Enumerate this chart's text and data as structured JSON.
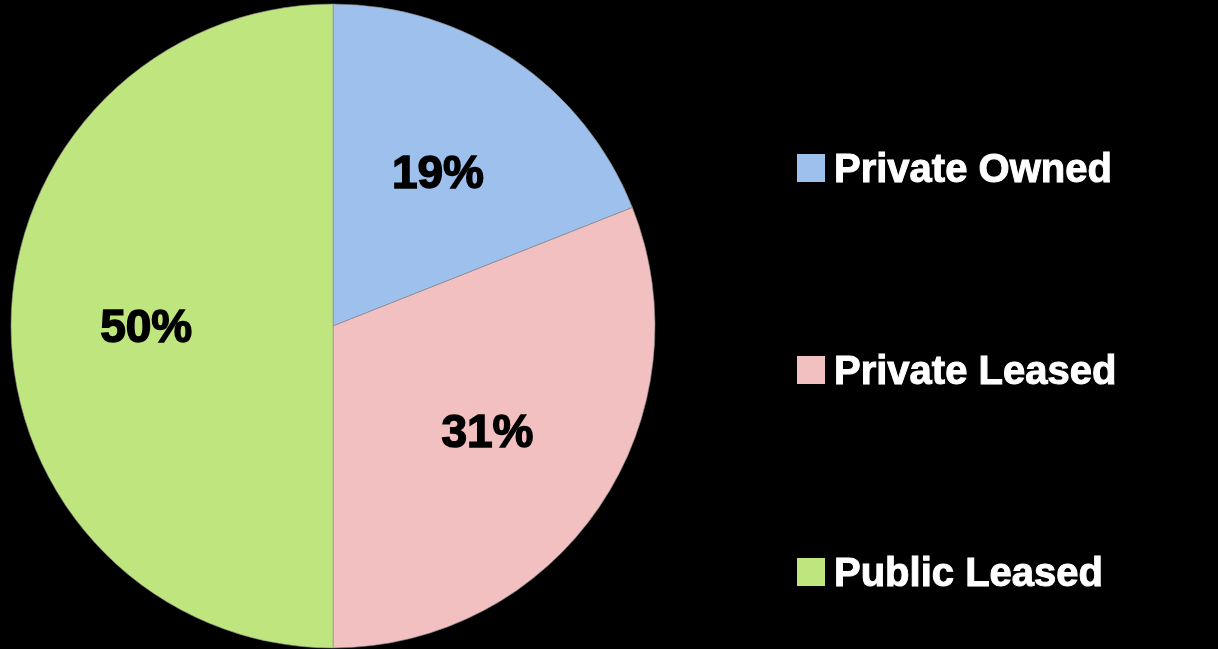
{
  "chart_data": {
    "type": "pie",
    "categories": [
      "Private Owned",
      "Private Leased",
      "Public Leased"
    ],
    "values": [
      19,
      31,
      50
    ],
    "colors": [
      "#9dc0ec",
      "#f2c0c0",
      "#bfe67e"
    ],
    "value_labels": [
      "19%",
      "31%",
      "50%"
    ],
    "legend": "right"
  }
}
